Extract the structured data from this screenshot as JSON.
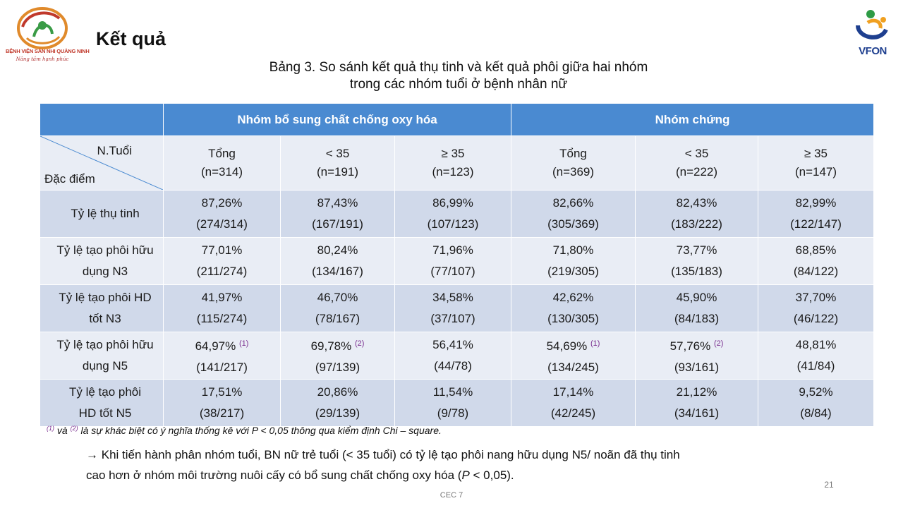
{
  "logo_left": {
    "brand_text": "BỆNH VIỆN SẢN NHI QUẢNG NINH",
    "motto": "Nâng tầm hạnh phúc"
  },
  "logo_right": {
    "brand_text": "VFON"
  },
  "title": "Kết quả",
  "caption": {
    "line1": "Bảng 3. So sánh kết quả thụ tinh và kết quả phôi giữa hai nhóm",
    "line2": "trong các nhóm tuổi ở bệnh nhân nữ"
  },
  "table": {
    "groups": [
      "Nhóm bổ sung chất chống oxy hóa",
      "Nhóm chứng"
    ],
    "corner_top": "N.Tuổi",
    "corner_bottom": "Đặc điểm",
    "columns": [
      {
        "label": "Tổng",
        "n": "(n=314)"
      },
      {
        "label": "< 35",
        "n": "(n=191)"
      },
      {
        "label": "≥ 35",
        "n": "(n=123)"
      },
      {
        "label": "Tổng",
        "n": "(n=369)"
      },
      {
        "label": "< 35",
        "n": "(n=222)"
      },
      {
        "label": "≥ 35",
        "n": "(n=147)"
      }
    ],
    "rows": [
      {
        "label1": "Tỷ lệ thụ tinh",
        "label2": "",
        "cells": [
          {
            "pct": "87,26%",
            "mark": "",
            "frac": "(274/314)"
          },
          {
            "pct": "87,43%",
            "mark": "",
            "frac": "(167/191)"
          },
          {
            "pct": "86,99%",
            "mark": "",
            "frac": "(107/123)"
          },
          {
            "pct": "82,66%",
            "mark": "",
            "frac": "(305/369)"
          },
          {
            "pct": "82,43%",
            "mark": "",
            "frac": "(183/222)"
          },
          {
            "pct": "82,99%",
            "mark": "",
            "frac": "(122/147)"
          }
        ]
      },
      {
        "label1": "Tỷ lệ tạo phôi hữu",
        "label2": "dụng N3",
        "cells": [
          {
            "pct": "77,01%",
            "mark": "",
            "frac": "(211/274)"
          },
          {
            "pct": "80,24%",
            "mark": "",
            "frac": "(134/167)"
          },
          {
            "pct": "71,96%",
            "mark": "",
            "frac": "(77/107)"
          },
          {
            "pct": "71,80%",
            "mark": "",
            "frac": "(219/305)"
          },
          {
            "pct": "73,77%",
            "mark": "",
            "frac": "(135/183)"
          },
          {
            "pct": "68,85%",
            "mark": "",
            "frac": "(84/122)"
          }
        ]
      },
      {
        "label1": "Tỷ lệ tạo phôi HD",
        "label2": "tốt N3",
        "cells": [
          {
            "pct": "41,97%",
            "mark": "",
            "frac": "(115/274)"
          },
          {
            "pct": "46,70%",
            "mark": "",
            "frac": "(78/167)"
          },
          {
            "pct": "34,58%",
            "mark": "",
            "frac": "(37/107)"
          },
          {
            "pct": "42,62%",
            "mark": "",
            "frac": "(130/305)"
          },
          {
            "pct": "45,90%",
            "mark": "",
            "frac": "(84/183)"
          },
          {
            "pct": "37,70%",
            "mark": "",
            "frac": "(46/122)"
          }
        ]
      },
      {
        "label1": "Tỷ lệ tạo phôi hữu",
        "label2": "dụng N5",
        "cells": [
          {
            "pct": "64,97%",
            "mark": "(1)",
            "frac": "(141/217)"
          },
          {
            "pct": "69,78%",
            "mark": "(2)",
            "frac": "(97/139)"
          },
          {
            "pct": "56,41%",
            "mark": "",
            "frac": "(44/78)"
          },
          {
            "pct": "54,69%",
            "mark": "(1)",
            "frac": "(134/245)"
          },
          {
            "pct": "57,76%",
            "mark": "(2)",
            "frac": "(93/161)"
          },
          {
            "pct": "48,81%",
            "mark": "",
            "frac": "(41/84)"
          }
        ]
      },
      {
        "label1": "Tỷ lệ tạo phôi",
        "label2": "HD tốt N5",
        "cells": [
          {
            "pct": "17,51%",
            "mark": "",
            "frac": "(38/217)"
          },
          {
            "pct": "20,86%",
            "mark": "",
            "frac": "(29/139)"
          },
          {
            "pct": "11,54%",
            "mark": "",
            "frac": "(9/78)"
          },
          {
            "pct": "17,14%",
            "mark": "",
            "frac": "(42/245)"
          },
          {
            "pct": "21,12%",
            "mark": "",
            "frac": "(34/161)"
          },
          {
            "pct": "9,52%",
            "mark": "",
            "frac": "(8/84)"
          }
        ]
      }
    ]
  },
  "footnote": {
    "mark1": "(1)",
    "and_word": "và",
    "mark2": "(2)",
    "text": "là sự khác biệt có ý nghĩa thống kê với P < 0,05 thông qua kiểm định Chi – square."
  },
  "conclusion": {
    "arrow": "→",
    "line1": "Khi tiến hành phân nhóm tuổi, BN nữ trẻ tuổi (< 35 tuổi) có tỷ lệ tạo phôi nang hữu dụng N5/ noãn đã thụ tinh",
    "line2_pre": "cao hơn ở nhóm môi trường nuôi cấy có bổ sung chất chống oxy hóa (",
    "line2_p": "P",
    "line2_post": " < 0,05)."
  },
  "footer": "CEC 7",
  "page_number": "21",
  "colors": {
    "header_blue": "#4a8ad1",
    "row_dark": "#d0d9ea",
    "row_light": "#e9edf5",
    "footnote_mark": "#7a2f8f"
  },
  "icons": [
    "hospital-logo-icon",
    "vfon-logo-icon",
    "arrow-right-icon"
  ]
}
